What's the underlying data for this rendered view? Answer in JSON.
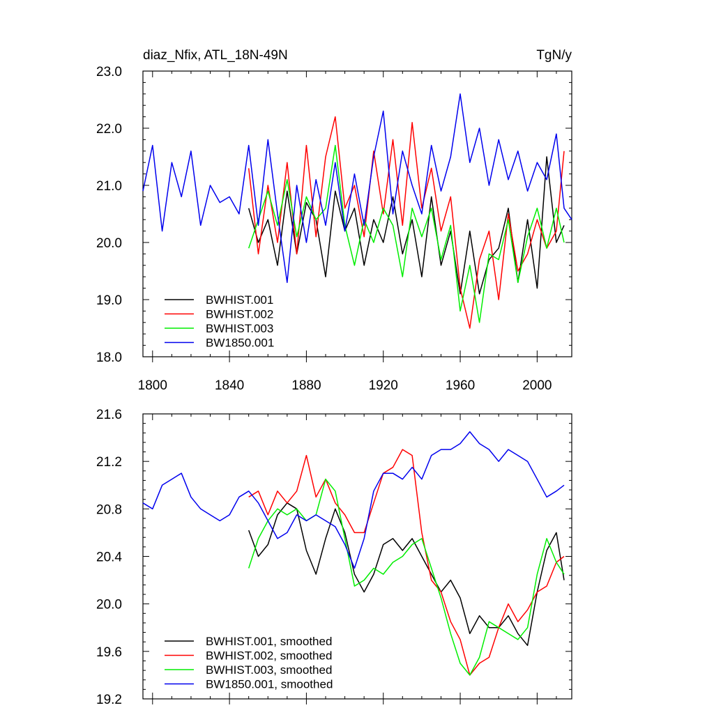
{
  "chart_data": [
    {
      "type": "line",
      "title_left": "diaz_Nfix, ATL_18N-49N",
      "title_right": "TgN/y",
      "xlim": [
        1795,
        2018
      ],
      "ylim": [
        18.0,
        23.0
      ],
      "x_ticks": [
        1800,
        1840,
        1880,
        1920,
        1960,
        2000
      ],
      "x_tick_labels": [
        "1800",
        "1840",
        "1880",
        "1920",
        "1960",
        "2000"
      ],
      "y_ticks": [
        18.0,
        19.0,
        20.0,
        21.0,
        22.0,
        23.0
      ],
      "y_tick_labels": [
        "18.0",
        "19.0",
        "20.0",
        "21.0",
        "22.0",
        "23.0"
      ],
      "legend_position": "bottom-left",
      "series": [
        {
          "name": "BWHIST.001",
          "color": "#000000",
          "x": [
            1850,
            1855,
            1860,
            1865,
            1870,
            1875,
            1880,
            1885,
            1890,
            1895,
            1900,
            1905,
            1910,
            1915,
            1920,
            1925,
            1930,
            1935,
            1940,
            1945,
            1950,
            1955,
            1960,
            1965,
            1970,
            1975,
            1980,
            1985,
            1990,
            1995,
            2000,
            2005,
            2010,
            2014
          ],
          "y": [
            20.6,
            20.0,
            20.4,
            19.6,
            20.9,
            19.8,
            20.7,
            20.4,
            19.4,
            20.9,
            20.2,
            20.6,
            19.6,
            20.4,
            20.0,
            20.8,
            19.8,
            20.4,
            19.4,
            20.8,
            19.6,
            20.2,
            19.1,
            20.2,
            19.1,
            19.7,
            19.9,
            20.6,
            19.3,
            20.4,
            19.2,
            21.5,
            20.0,
            20.3
          ]
        },
        {
          "name": "BWHIST.002",
          "color": "#ff0000",
          "x": [
            1850,
            1855,
            1860,
            1865,
            1870,
            1875,
            1880,
            1885,
            1890,
            1895,
            1900,
            1905,
            1910,
            1915,
            1920,
            1925,
            1930,
            1935,
            1940,
            1945,
            1950,
            1955,
            1960,
            1965,
            1970,
            1975,
            1980,
            1985,
            1990,
            1995,
            2000,
            2005,
            2010,
            2014
          ],
          "y": [
            21.3,
            19.8,
            21.0,
            20.0,
            21.4,
            19.8,
            21.7,
            20.1,
            21.5,
            22.2,
            20.6,
            21.0,
            20.1,
            21.6,
            20.5,
            21.8,
            20.3,
            22.1,
            20.6,
            21.3,
            20.2,
            20.8,
            19.2,
            18.5,
            19.7,
            20.2,
            19.0,
            20.5,
            19.5,
            19.8,
            20.4,
            19.9,
            20.2,
            21.6
          ]
        },
        {
          "name": "BWHIST.003",
          "color": "#00ee00",
          "x": [
            1850,
            1855,
            1860,
            1865,
            1870,
            1875,
            1880,
            1885,
            1890,
            1895,
            1900,
            1905,
            1910,
            1915,
            1920,
            1925,
            1930,
            1935,
            1940,
            1945,
            1950,
            1955,
            1960,
            1965,
            1970,
            1975,
            1980,
            1985,
            1990,
            1995,
            2000,
            2005,
            2010,
            2014
          ],
          "y": [
            19.9,
            20.4,
            20.9,
            20.3,
            21.1,
            20.1,
            20.8,
            20.4,
            20.6,
            21.7,
            20.3,
            19.6,
            20.4,
            20.0,
            20.6,
            20.3,
            19.4,
            20.6,
            20.1,
            20.6,
            19.7,
            20.3,
            18.8,
            19.6,
            18.6,
            19.8,
            19.7,
            20.4,
            19.3,
            20.1,
            20.6,
            19.9,
            20.6,
            20.0
          ]
        },
        {
          "name": "BW1850.001",
          "color": "#0000ee",
          "x": [
            1795,
            1800,
            1805,
            1810,
            1815,
            1820,
            1825,
            1830,
            1835,
            1840,
            1845,
            1850,
            1855,
            1860,
            1865,
            1870,
            1875,
            1880,
            1885,
            1890,
            1895,
            1900,
            1905,
            1910,
            1915,
            1920,
            1925,
            1930,
            1935,
            1940,
            1945,
            1950,
            1955,
            1960,
            1965,
            1970,
            1975,
            1980,
            1985,
            1990,
            1995,
            2000,
            2005,
            2010,
            2014,
            2018
          ],
          "y": [
            20.9,
            21.7,
            20.2,
            21.4,
            20.8,
            21.6,
            20.3,
            21.0,
            20.7,
            20.8,
            20.5,
            21.7,
            20.3,
            21.8,
            20.5,
            19.3,
            21.0,
            20.0,
            21.1,
            20.3,
            21.4,
            20.2,
            21.2,
            20.3,
            21.5,
            22.3,
            20.5,
            21.6,
            21.0,
            20.5,
            21.7,
            20.9,
            21.5,
            22.6,
            21.4,
            22.0,
            21.0,
            21.8,
            21.1,
            21.6,
            20.9,
            21.4,
            21.1,
            21.9,
            20.6,
            20.4
          ]
        }
      ]
    },
    {
      "type": "line",
      "xlim": [
        1795,
        2018
      ],
      "ylim": [
        19.2,
        21.6
      ],
      "x_ticks": [
        1800,
        1840,
        1880,
        1920,
        1960,
        2000
      ],
      "y_ticks": [
        19.2,
        19.6,
        20.0,
        20.4,
        20.8,
        21.2,
        21.6
      ],
      "y_tick_labels": [
        "19.2",
        "19.6",
        "20.0",
        "20.4",
        "20.8",
        "21.2",
        "21.6"
      ],
      "legend_position": "bottom-left",
      "series": [
        {
          "name": "BWHIST.001, smoothed",
          "color": "#000000",
          "x": [
            1850,
            1855,
            1860,
            1865,
            1870,
            1875,
            1880,
            1885,
            1890,
            1895,
            1900,
            1905,
            1910,
            1915,
            1920,
            1925,
            1930,
            1935,
            1940,
            1945,
            1950,
            1955,
            1960,
            1965,
            1970,
            1975,
            1980,
            1985,
            1990,
            1995,
            2000,
            2005,
            2010,
            2014
          ],
          "y": [
            20.62,
            20.4,
            20.5,
            20.75,
            20.85,
            20.8,
            20.45,
            20.25,
            20.55,
            20.8,
            20.6,
            20.25,
            20.1,
            20.25,
            20.5,
            20.55,
            20.45,
            20.55,
            20.4,
            20.25,
            20.1,
            20.2,
            20.05,
            19.75,
            19.9,
            19.8,
            19.8,
            19.9,
            19.75,
            19.65,
            20.1,
            20.45,
            20.6,
            20.2
          ]
        },
        {
          "name": "BWHIST.002, smoothed",
          "color": "#ff0000",
          "x": [
            1850,
            1855,
            1860,
            1865,
            1870,
            1875,
            1880,
            1885,
            1890,
            1895,
            1900,
            1905,
            1910,
            1915,
            1920,
            1925,
            1930,
            1935,
            1940,
            1945,
            1950,
            1955,
            1960,
            1965,
            1970,
            1975,
            1980,
            1985,
            1990,
            1995,
            2000,
            2005,
            2010,
            2014
          ],
          "y": [
            20.9,
            20.95,
            20.75,
            20.95,
            20.85,
            20.95,
            21.25,
            20.9,
            21.05,
            20.85,
            20.75,
            20.6,
            20.6,
            20.85,
            21.1,
            21.15,
            21.3,
            21.25,
            20.6,
            20.2,
            20.1,
            19.85,
            19.7,
            19.4,
            19.5,
            19.55,
            19.8,
            20.0,
            19.85,
            19.95,
            20.1,
            20.15,
            20.35,
            20.4
          ]
        },
        {
          "name": "BWHIST.003, smoothed",
          "color": "#00ee00",
          "x": [
            1850,
            1855,
            1860,
            1865,
            1870,
            1875,
            1880,
            1885,
            1890,
            1895,
            1900,
            1905,
            1910,
            1915,
            1920,
            1925,
            1930,
            1935,
            1940,
            1945,
            1950,
            1955,
            1960,
            1965,
            1970,
            1975,
            1980,
            1985,
            1990,
            1995,
            2000,
            2005,
            2010,
            2014
          ],
          "y": [
            20.3,
            20.55,
            20.7,
            20.8,
            20.75,
            20.8,
            20.7,
            20.75,
            21.05,
            20.95,
            20.55,
            20.15,
            20.2,
            20.3,
            20.25,
            20.35,
            20.4,
            20.5,
            20.55,
            20.3,
            20.05,
            19.75,
            19.5,
            19.4,
            19.55,
            19.85,
            19.8,
            19.75,
            19.7,
            19.8,
            20.25,
            20.55,
            20.35,
            20.25
          ]
        },
        {
          "name": "BW1850.001, smoothed",
          "color": "#0000ee",
          "x": [
            1795,
            1800,
            1805,
            1810,
            1815,
            1820,
            1825,
            1830,
            1835,
            1840,
            1845,
            1850,
            1855,
            1860,
            1865,
            1870,
            1875,
            1880,
            1885,
            1890,
            1895,
            1900,
            1905,
            1910,
            1915,
            1920,
            1925,
            1930,
            1935,
            1940,
            1945,
            1950,
            1955,
            1960,
            1965,
            1970,
            1975,
            1980,
            1985,
            1990,
            1995,
            2000,
            2005,
            2010,
            2014
          ],
          "y": [
            20.85,
            20.8,
            21.0,
            21.05,
            21.1,
            20.9,
            20.8,
            20.75,
            20.7,
            20.75,
            20.9,
            20.95,
            20.85,
            20.7,
            20.55,
            20.6,
            20.75,
            20.7,
            20.75,
            20.7,
            20.65,
            20.5,
            20.3,
            20.55,
            20.95,
            21.1,
            21.1,
            21.05,
            21.15,
            21.05,
            21.25,
            21.3,
            21.3,
            21.35,
            21.45,
            21.35,
            21.3,
            21.2,
            21.3,
            21.25,
            21.2,
            21.05,
            20.9,
            20.95,
            21.0
          ]
        }
      ]
    }
  ]
}
